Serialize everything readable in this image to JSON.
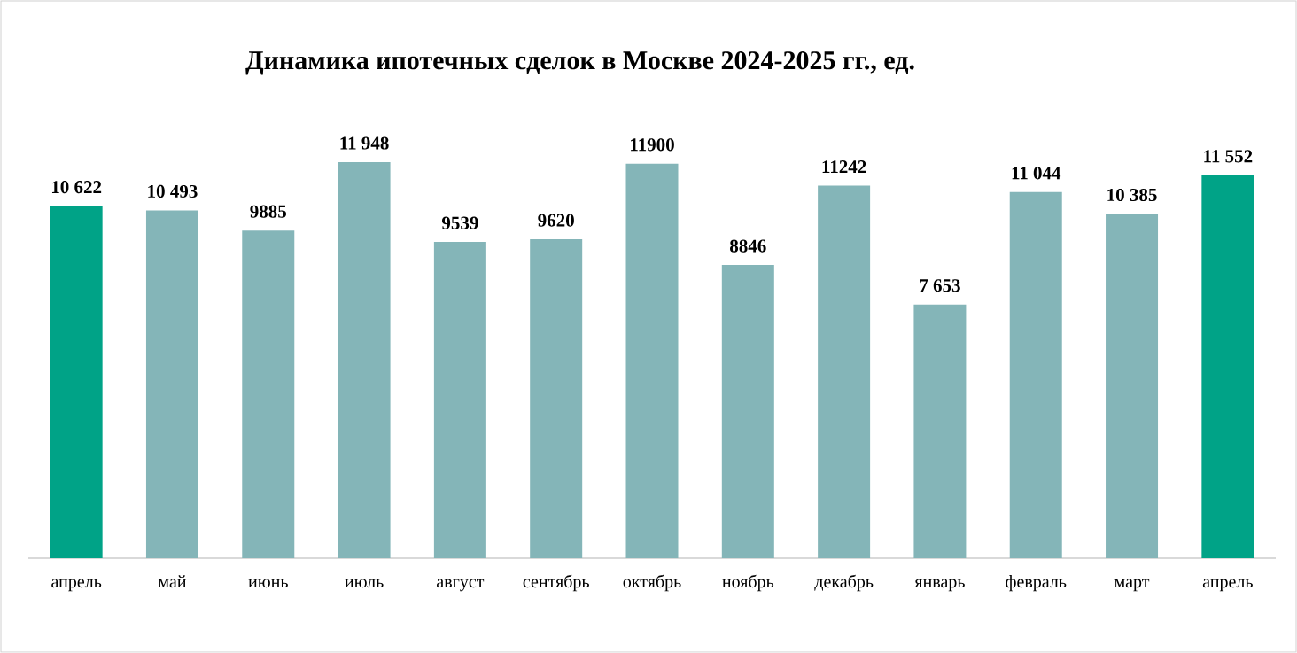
{
  "chart_data": {
    "type": "bar",
    "title": "Динамика ипотечных сделок в Москве 2024-2025 гг., ед.",
    "categories": [
      "апрель",
      "май",
      "июнь",
      "июль",
      "август",
      "сентябрь",
      "октябрь",
      "ноябрь",
      "декабрь",
      "январь",
      "февраль",
      "март",
      "апрель"
    ],
    "values": [
      10622,
      10493,
      9885,
      11948,
      9539,
      9620,
      11900,
      8846,
      11242,
      7653,
      11044,
      10385,
      11552
    ],
    "value_labels": [
      "10 622",
      "10 493",
      "9885",
      "11 948",
      "9539",
      "9620",
      "11900",
      "8846",
      "11242",
      "7 653",
      "11 044",
      "10 385",
      "11 552"
    ],
    "colors": [
      "#00a387",
      "#84b5b8",
      "#84b5b8",
      "#84b5b8",
      "#84b5b8",
      "#84b5b8",
      "#84b5b8",
      "#84b5b8",
      "#84b5b8",
      "#84b5b8",
      "#84b5b8",
      "#84b5b8",
      "#00a387"
    ],
    "tick_labels": "x"
  }
}
